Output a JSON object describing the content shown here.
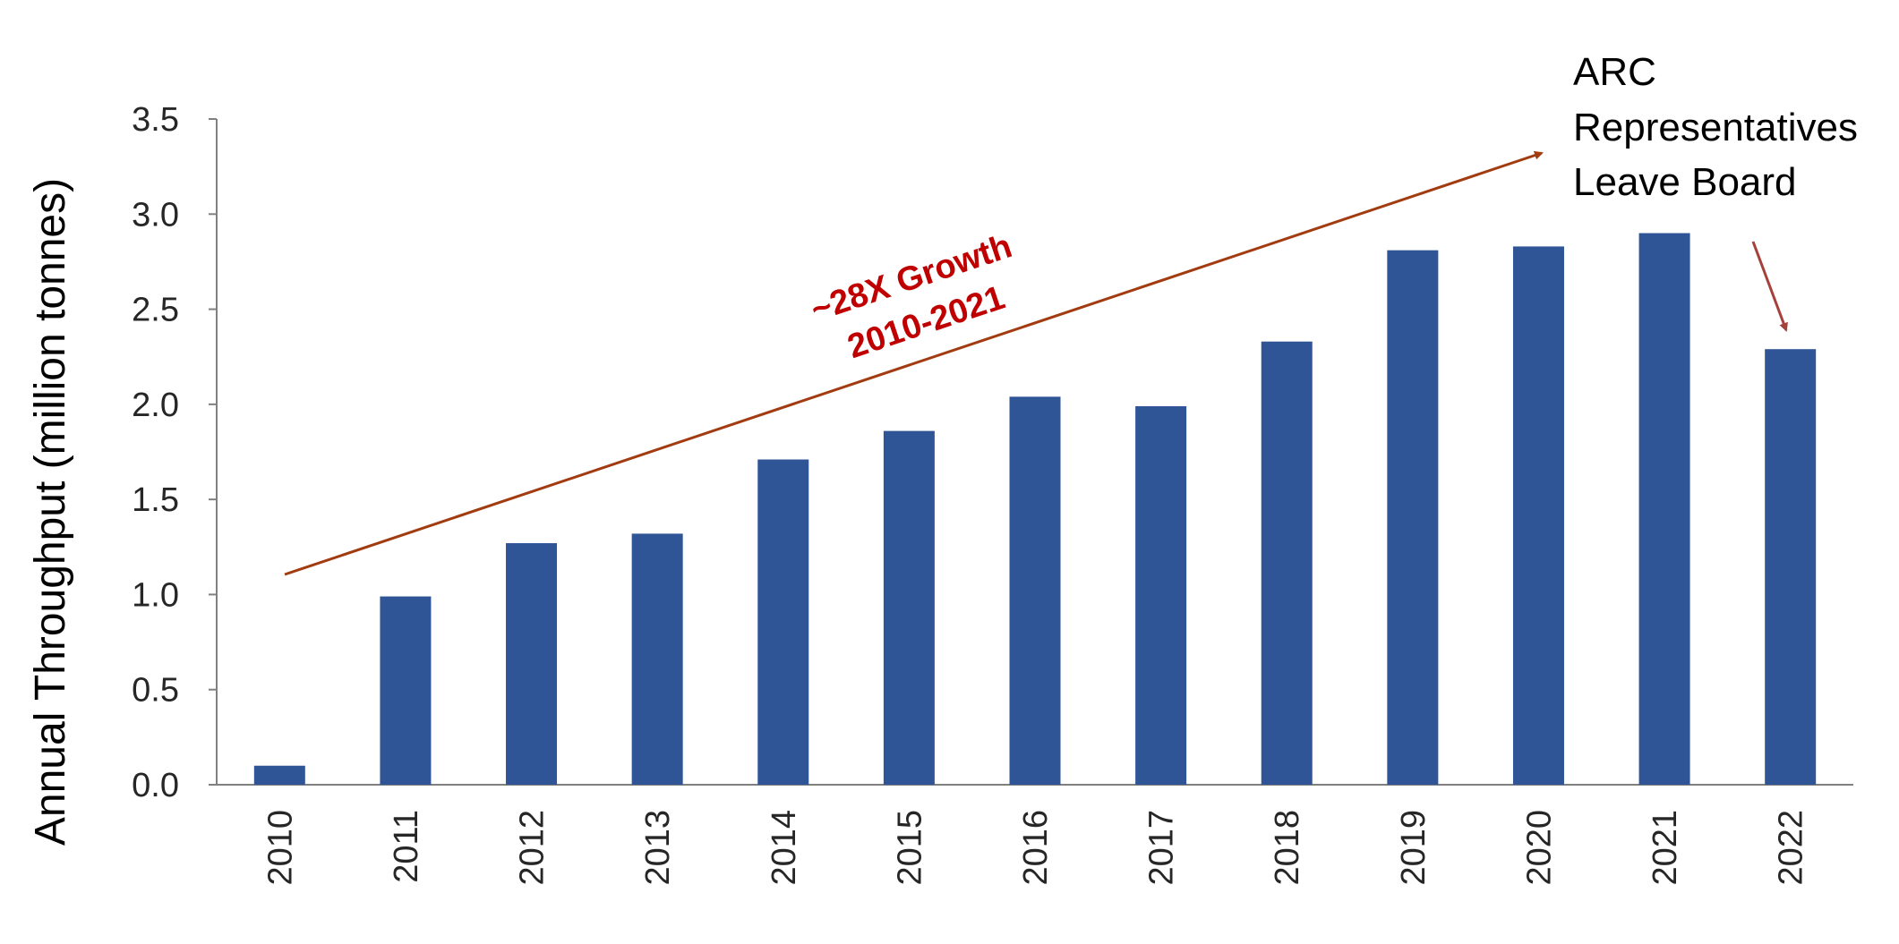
{
  "chart_data": {
    "type": "bar",
    "ylabel": "Annual Throughput (million tonnes)",
    "xlabel": "",
    "categories": [
      "2010",
      "2011",
      "2012",
      "2013",
      "2014",
      "2015",
      "2016",
      "2017",
      "2018",
      "2019",
      "2020",
      "2021",
      "2022"
    ],
    "series": [
      {
        "values": [
          0.1,
          0.99,
          1.27,
          1.32,
          1.71,
          1.86,
          2.04,
          1.99,
          2.33,
          2.81,
          2.83,
          2.9,
          2.29
        ]
      }
    ],
    "ylim": [
      0,
      3.5
    ],
    "yticks": [
      "0.0",
      "0.5",
      "1.0",
      "1.5",
      "2.0",
      "2.5",
      "3.0",
      "3.5"
    ],
    "grid": false,
    "legend": "none",
    "annotations": {
      "growth_line1": "~28X Growth",
      "growth_line2": "2010-2021",
      "board_note_lines": [
        "ARC",
        "Representatives",
        "Leave Board"
      ]
    },
    "colors": {
      "bar": "#2f5597",
      "trend_arrow": "#a23c10",
      "note_arrow": "#a5403a",
      "growth_text": "#c00000",
      "axis": "#808080"
    }
  }
}
